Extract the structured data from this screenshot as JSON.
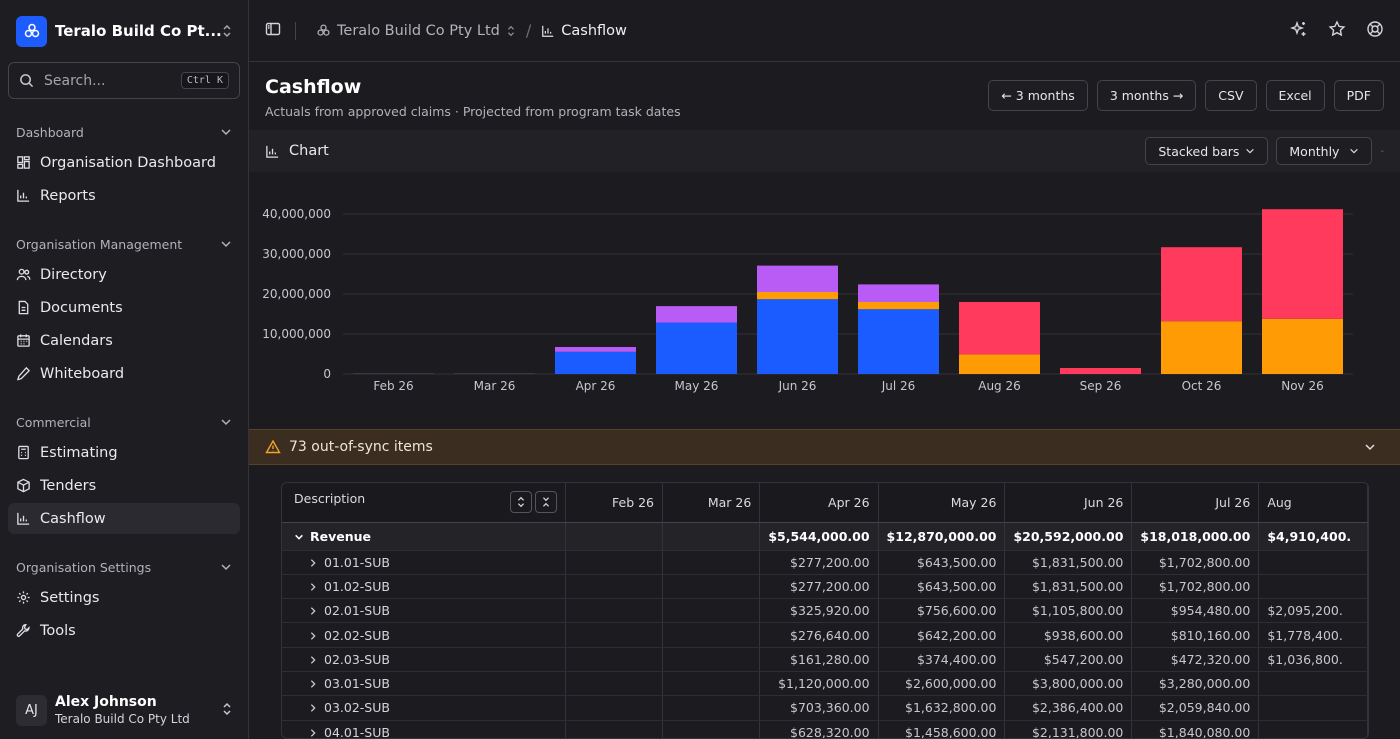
{
  "org": {
    "name": "Teralo Build Co Pt...",
    "full_name": "Teralo Build Co Pty Ltd"
  },
  "search": {
    "placeholder": "Search...",
    "shortcut": "Ctrl K"
  },
  "sidebar": {
    "sections": [
      {
        "title": "Dashboard",
        "items": [
          "Organisation Dashboard",
          "Reports"
        ]
      },
      {
        "title": "Organisation Management",
        "items": [
          "Directory",
          "Documents",
          "Calendars",
          "Whiteboard"
        ]
      },
      {
        "title": "Commercial",
        "items": [
          "Estimating",
          "Tenders",
          "Cashflow"
        ]
      },
      {
        "title": "Organisation Settings",
        "items": [
          "Settings",
          "Tools"
        ]
      }
    ],
    "active_item": "Cashflow"
  },
  "user": {
    "initials": "AJ",
    "name": "Alex Johnson",
    "org": "Teralo Build Co Pty Ltd"
  },
  "breadcrumb": {
    "org": "Teralo Build Co Pty Ltd",
    "page": "Cashflow"
  },
  "page": {
    "title": "Cashflow",
    "subtitle": "Actuals from approved claims · Projected from program task dates",
    "buttons": {
      "prev": "← 3 months",
      "next": "3 months →",
      "csv": "CSV",
      "excel": "Excel",
      "pdf": "PDF"
    }
  },
  "chart_panel": {
    "title": "Chart",
    "view_select": "Stacked bars",
    "period_select": "Monthly"
  },
  "chart_data": {
    "type": "bar",
    "stacked": true,
    "categories": [
      "Feb 26",
      "Mar 26",
      "Apr 26",
      "May 26",
      "Jun 26",
      "Jul 26",
      "Aug 26",
      "Sep 26",
      "Oct 26",
      "Nov 26"
    ],
    "yticks": [
      "0",
      "10,000,000",
      "20,000,000",
      "30,000,000",
      "40,000,000"
    ],
    "ylim": [
      0,
      40000000
    ],
    "grid": true,
    "series": [
      {
        "color": "#1a5cff",
        "values": [
          0,
          0,
          5544000,
          12870000,
          18700000,
          16200000,
          0,
          0,
          0,
          0
        ]
      },
      {
        "color": "#ff9b05",
        "values": [
          0,
          0,
          0,
          0,
          1800000,
          1800000,
          4910400,
          0,
          13200000,
          13800000
        ]
      },
      {
        "color": "#b85cf5",
        "values": [
          0,
          0,
          1200000,
          4100000,
          6600000,
          4400000,
          0,
          0,
          0,
          0
        ]
      },
      {
        "color": "#ff3a5c",
        "values": [
          0,
          0,
          0,
          0,
          0,
          0,
          13100000,
          1500000,
          18500000,
          27400000
        ]
      }
    ]
  },
  "out_of_sync": {
    "label": "73 out-of-sync items"
  },
  "table": {
    "headers": [
      "Description",
      "Feb 26",
      "Mar 26",
      "Apr 26",
      "May 26",
      "Jun 26",
      "Jul 26",
      "Aug"
    ],
    "revenue": {
      "label": "Revenue",
      "values": [
        "",
        "",
        "$5,544,000.00",
        "$12,870,000.00",
        "$20,592,000.00",
        "$18,018,000.00",
        "$4,910,400."
      ]
    },
    "rows": [
      {
        "label": "01.01-SUB",
        "values": [
          "",
          "",
          "$277,200.00",
          "$643,500.00",
          "$1,831,500.00",
          "$1,702,800.00",
          ""
        ]
      },
      {
        "label": "01.02-SUB",
        "values": [
          "",
          "",
          "$277,200.00",
          "$643,500.00",
          "$1,831,500.00",
          "$1,702,800.00",
          ""
        ]
      },
      {
        "label": "02.01-SUB",
        "values": [
          "",
          "",
          "$325,920.00",
          "$756,600.00",
          "$1,105,800.00",
          "$954,480.00",
          "$2,095,200."
        ]
      },
      {
        "label": "02.02-SUB",
        "values": [
          "",
          "",
          "$276,640.00",
          "$642,200.00",
          "$938,600.00",
          "$810,160.00",
          "$1,778,400."
        ]
      },
      {
        "label": "02.03-SUB",
        "values": [
          "",
          "",
          "$161,280.00",
          "$374,400.00",
          "$547,200.00",
          "$472,320.00",
          "$1,036,800."
        ]
      },
      {
        "label": "03.01-SUB",
        "values": [
          "",
          "",
          "$1,120,000.00",
          "$2,600,000.00",
          "$3,800,000.00",
          "$3,280,000.00",
          ""
        ]
      },
      {
        "label": "03.02-SUB",
        "values": [
          "",
          "",
          "$703,360.00",
          "$1,632,800.00",
          "$2,386,400.00",
          "$2,059,840.00",
          ""
        ]
      },
      {
        "label": "04.01-SUB",
        "values": [
          "",
          "",
          "$628,320.00",
          "$1,458,600.00",
          "$2,131,800.00",
          "$1,840,080.00",
          ""
        ]
      }
    ]
  }
}
